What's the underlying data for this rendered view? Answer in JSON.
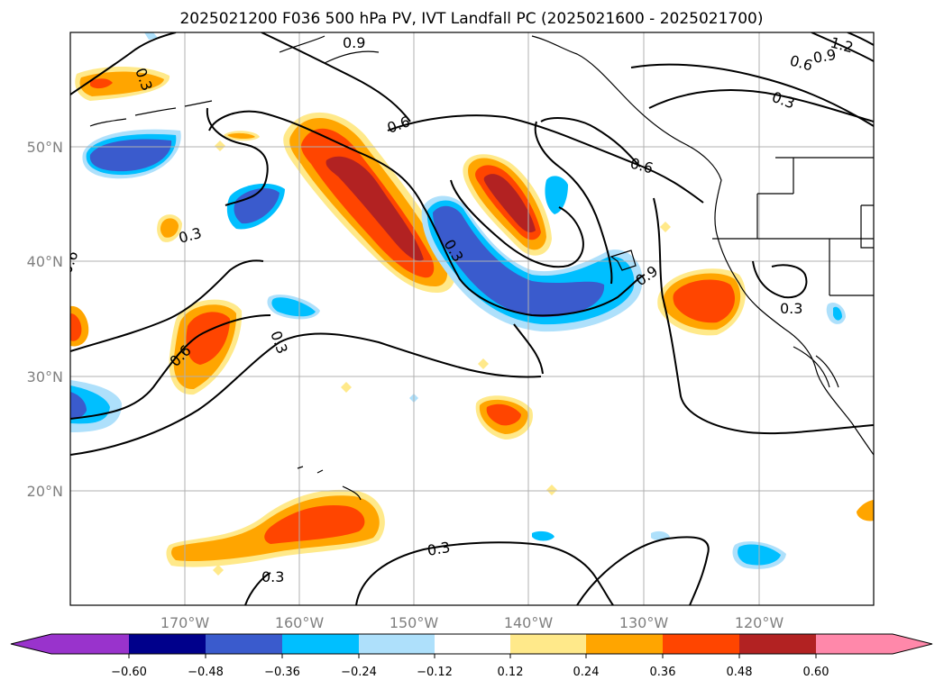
{
  "title": "2025021200 F036 500 hPa PV, IVT Landfall PC (2025021600 - 2025021700)",
  "map": {
    "lat_labels": [
      "20°N",
      "30°N",
      "40°N",
      "50°N"
    ],
    "lon_labels": [
      "170°W",
      "160°W",
      "150°W",
      "140°W",
      "130°W",
      "120°W"
    ],
    "contour_labels": [
      "0.3",
      "0.6",
      "0.9",
      "1.2"
    ],
    "colors": {
      "contour": "#000000",
      "grid": "#b0b0b0",
      "coast": "#000000"
    }
  },
  "colorbar": {
    "ticks": [
      "−0.60",
      "−0.48",
      "−0.36",
      "−0.24",
      "−0.12",
      "0.12",
      "0.24",
      "0.36",
      "0.48",
      "0.60"
    ],
    "colors": [
      "#9933cc",
      "#00008b",
      "#3a5bcd",
      "#00bfff",
      "#aee0fb",
      "#ffffff",
      "#ffe98a",
      "#ffa500",
      "#ff4500",
      "#b22222",
      "#ff88aa"
    ]
  }
}
